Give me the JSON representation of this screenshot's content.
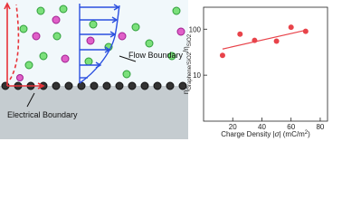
{
  "diagram": {
    "labels": {
      "flow": "Flow Boundary",
      "electrical": "Electrical Boundary"
    }
  },
  "chart_data": {
    "type": "scatter",
    "ylabel": {
      "main1": "η",
      "sub1": "Graphene/SiO2",
      "main2": "/η",
      "sub2": "SiO2"
    },
    "xlabel": [
      "Charge Density |",
      "σ",
      "| (mC/m",
      "2",
      ")"
    ],
    "xlim": [
      0,
      85
    ],
    "xticks": [
      20,
      40,
      60,
      80
    ],
    "ylim": [
      1,
      300
    ],
    "yticks": [
      10,
      100
    ],
    "log_y": true,
    "series": [
      {
        "color": "#e8434a",
        "x": [
          13,
          25,
          35,
          50,
          60,
          70
        ],
        "values": [
          27,
          78,
          57,
          55,
          110,
          90
        ]
      },
      {
        "color": "#e8434a",
        "type": "line",
        "x": [
          13,
          70
        ],
        "values": [
          37,
          95
        ]
      }
    ]
  }
}
